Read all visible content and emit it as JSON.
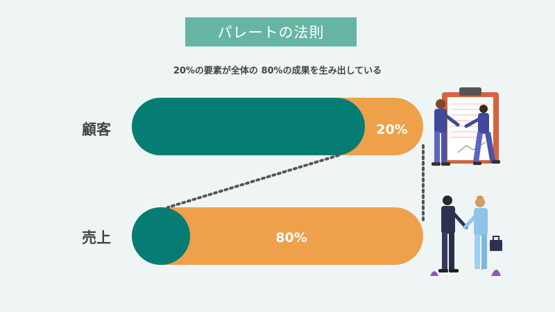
{
  "title": "パレートの法則",
  "subtitle": "20%の要素が全体の 80%の成果を生み出している",
  "colors": {
    "teal": "#057d74",
    "orange": "#eea04a",
    "title_bg": "#66b5a3",
    "background": "#eef5f4",
    "dotted": "#555555"
  },
  "bars": [
    {
      "label": "顧客",
      "segments": [
        {
          "share": 0.8,
          "color": "teal",
          "text": ""
        },
        {
          "share": 0.2,
          "color": "orange",
          "text": "20%"
        }
      ]
    },
    {
      "label": "売上",
      "segments": [
        {
          "share": 0.2,
          "color": "teal",
          "text": ""
        },
        {
          "share": 0.8,
          "color": "orange",
          "text": "80%"
        }
      ]
    }
  ],
  "illustrations": [
    "business-meeting-clipboard-illustration",
    "business-handshake-illustration"
  ]
}
